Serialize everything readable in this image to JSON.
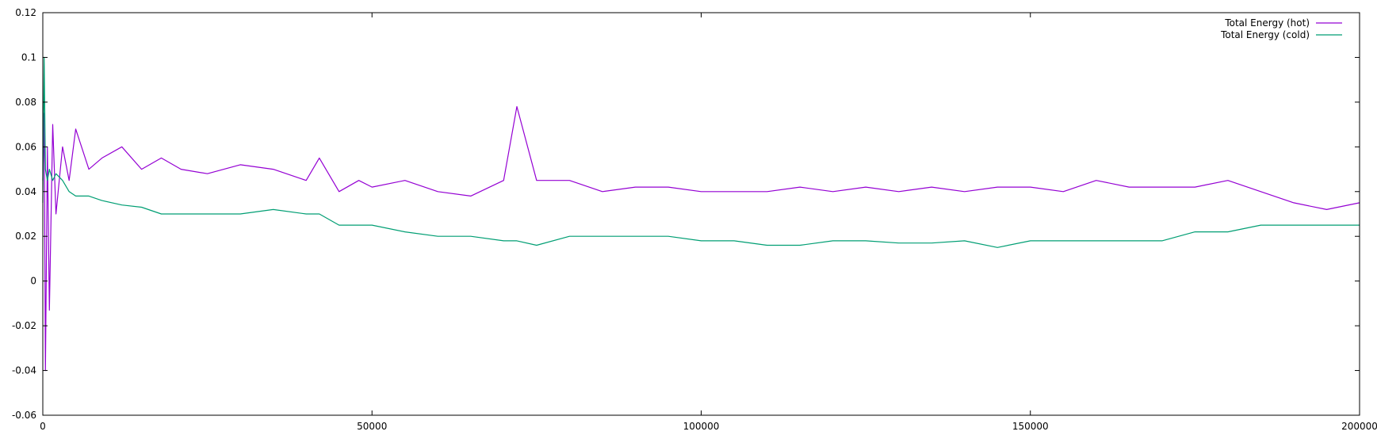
{
  "chart_data": {
    "type": "line",
    "title": "",
    "xlabel": "",
    "ylabel": "",
    "xlim": [
      0,
      200000
    ],
    "ylim": [
      -0.06,
      0.12
    ],
    "x_ticks": [
      0,
      50000,
      100000,
      150000,
      200000
    ],
    "x_tick_labels": [
      "0",
      "50000",
      "100000",
      "150000",
      "200000"
    ],
    "y_ticks": [
      -0.06,
      -0.04,
      -0.02,
      0,
      0.02,
      0.04,
      0.06,
      0.08,
      0.1,
      0.12
    ],
    "y_tick_labels": [
      "-0.06",
      "-0.04",
      "-0.02",
      "0",
      "0.02",
      "0.04",
      "0.06",
      "0.08",
      "0.1",
      "0.12"
    ],
    "grid": false,
    "legend_position": "top-right",
    "colors": {
      "hot": "#9400d3",
      "cold": "#009e73"
    },
    "series": [
      {
        "name": "Total Energy (hot)",
        "key": "hot",
        "x": [
          0,
          200,
          400,
          700,
          1000,
          1500,
          2000,
          3000,
          4000,
          5000,
          7000,
          9000,
          12000,
          15000,
          18000,
          21000,
          25000,
          30000,
          35000,
          40000,
          42000,
          45000,
          48000,
          50000,
          55000,
          60000,
          65000,
          70000,
          72000,
          75000,
          80000,
          85000,
          90000,
          95000,
          100000,
          105000,
          110000,
          115000,
          120000,
          125000,
          130000,
          135000,
          140000,
          145000,
          150000,
          155000,
          160000,
          165000,
          170000,
          175000,
          180000,
          185000,
          190000,
          195000,
          200000
        ],
        "values": [
          0.045,
          0.075,
          -0.04,
          0.06,
          -0.013,
          0.07,
          0.03,
          0.06,
          0.045,
          0.068,
          0.05,
          0.055,
          0.06,
          0.05,
          0.055,
          0.05,
          0.048,
          0.052,
          0.05,
          0.045,
          0.055,
          0.04,
          0.045,
          0.042,
          0.045,
          0.04,
          0.038,
          0.045,
          0.078,
          0.045,
          0.045,
          0.04,
          0.042,
          0.042,
          0.04,
          0.04,
          0.04,
          0.042,
          0.04,
          0.042,
          0.04,
          0.042,
          0.04,
          0.042,
          0.042,
          0.04,
          0.045,
          0.042,
          0.042,
          0.042,
          0.045,
          0.04,
          0.035,
          0.032,
          0.035
        ]
      },
      {
        "name": "Total Energy (cold)",
        "key": "cold",
        "x": [
          0,
          200,
          400,
          700,
          1000,
          1500,
          2000,
          3000,
          4000,
          5000,
          7000,
          9000,
          12000,
          15000,
          18000,
          21000,
          25000,
          30000,
          35000,
          40000,
          42000,
          45000,
          48000,
          50000,
          55000,
          60000,
          65000,
          70000,
          72000,
          75000,
          80000,
          85000,
          90000,
          95000,
          100000,
          105000,
          110000,
          115000,
          120000,
          125000,
          130000,
          135000,
          140000,
          145000,
          150000,
          155000,
          160000,
          165000,
          170000,
          175000,
          180000,
          185000,
          190000,
          195000,
          200000
        ],
        "values": [
          0.035,
          0.1,
          0.05,
          0.045,
          0.05,
          0.045,
          0.048,
          0.045,
          0.04,
          0.038,
          0.038,
          0.036,
          0.034,
          0.033,
          0.03,
          0.03,
          0.03,
          0.03,
          0.032,
          0.03,
          0.03,
          0.025,
          0.025,
          0.025,
          0.022,
          0.02,
          0.02,
          0.018,
          0.018,
          0.016,
          0.02,
          0.02,
          0.02,
          0.02,
          0.018,
          0.018,
          0.016,
          0.016,
          0.018,
          0.018,
          0.017,
          0.017,
          0.018,
          0.015,
          0.018,
          0.018,
          0.018,
          0.018,
          0.018,
          0.022,
          0.022,
          0.025,
          0.025,
          0.025,
          0.025
        ]
      }
    ]
  }
}
